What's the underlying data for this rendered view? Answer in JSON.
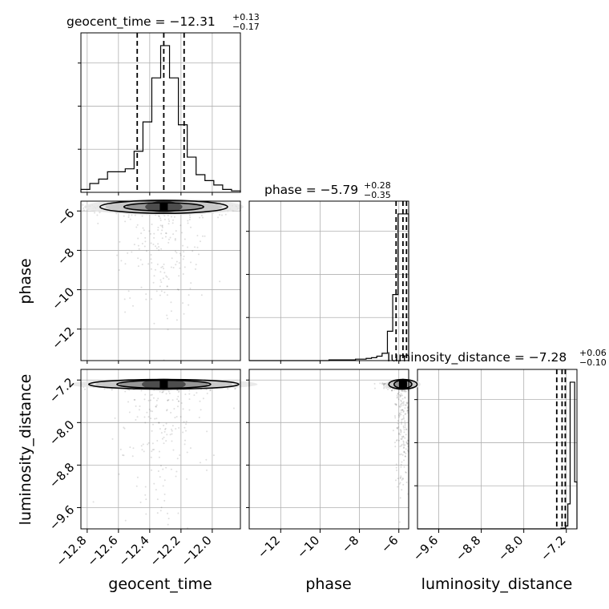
{
  "chart_data": {
    "type": "corner",
    "grid": true,
    "parameters": [
      {
        "name": "geocent_time",
        "xlabel": "geocent_time",
        "title_prefix": "geocent_time = ",
        "median": "−12.31",
        "err_plus": "+0.13",
        "err_minus": "−0.17",
        "range": [
          -12.84,
          -11.82
        ],
        "ticks": [
          -12.8,
          -12.6,
          -12.4,
          -12.2,
          -12.0
        ],
        "tick_labels": [
          "−12.8",
          "−12.6",
          "−12.4",
          "−12.2",
          "−12.0"
        ],
        "quantiles": [
          -12.48,
          -12.31,
          -12.18
        ],
        "hist_counts": [
          2,
          6,
          9,
          14,
          14,
          16,
          28,
          48,
          78,
          100,
          78,
          46,
          24,
          12,
          8,
          5,
          2,
          1
        ]
      },
      {
        "name": "phase",
        "xlabel": "phase",
        "ylabel": "phase",
        "title_prefix": "phase = ",
        "median": "−5.79",
        "err_plus": "+0.28",
        "err_minus": "−0.35",
        "range": [
          -13.6,
          -5.5
        ],
        "ticks": [
          -12,
          -10,
          -8,
          -6
        ],
        "tick_labels": [
          "−12",
          "−10",
          "−8",
          "−6"
        ],
        "quantiles": [
          -6.14,
          -5.79,
          -5.61
        ],
        "hist_counts": [
          0,
          0,
          0,
          0,
          0,
          0,
          0,
          0,
          0,
          0,
          0,
          0,
          0,
          0,
          0,
          0.5,
          0.5,
          0.5,
          0.5,
          0.5,
          1,
          1,
          1.5,
          2,
          3,
          5,
          20,
          45,
          100,
          100
        ]
      },
      {
        "name": "luminosity_distance",
        "xlabel": "luminosity_distance",
        "ylabel": "luminosity_distance",
        "title_prefix": "luminosity_distance = ",
        "median": "−7.28",
        "err_plus": "+0.06",
        "err_minus": "−0.10",
        "range": [
          -10.0,
          -7.0
        ],
        "ticks": [
          -9.6,
          -8.8,
          -8.0,
          -7.2
        ],
        "tick_labels": [
          "−9.6",
          "−8.8",
          "−8.0",
          "−7.2"
        ],
        "quantiles": [
          -7.38,
          -7.28,
          -7.22
        ],
        "hist_counts": [
          0,
          0,
          0,
          0,
          0,
          0,
          0,
          0,
          0,
          0,
          0,
          0,
          0,
          0,
          0,
          0,
          0,
          0,
          0,
          0,
          0,
          0,
          0,
          0,
          0,
          0,
          0,
          0,
          0,
          0,
          0,
          0,
          0,
          0,
          0,
          0,
          0,
          0,
          0,
          0,
          0,
          0,
          0,
          0,
          0,
          0,
          0,
          0,
          0,
          0,
          0,
          0,
          0,
          0,
          0,
          0,
          0,
          0,
          0,
          0,
          0,
          0,
          0,
          0.5,
          0.5,
          2,
          17,
          100,
          100,
          32
        ]
      }
    ],
    "pairs": [
      {
        "x": "geocent_time",
        "y": "phase",
        "peak": [
          -12.31,
          -5.79
        ],
        "spread": [
          0.17,
          0.25
        ]
      },
      {
        "x": "geocent_time",
        "y": "luminosity_distance",
        "peak": [
          -12.31,
          -7.28
        ],
        "spread": [
          0.2,
          0.06
        ]
      },
      {
        "x": "phase",
        "y": "luminosity_distance",
        "peak": [
          -5.79,
          -7.28
        ],
        "spread": [
          0.3,
          0.06
        ]
      }
    ]
  }
}
